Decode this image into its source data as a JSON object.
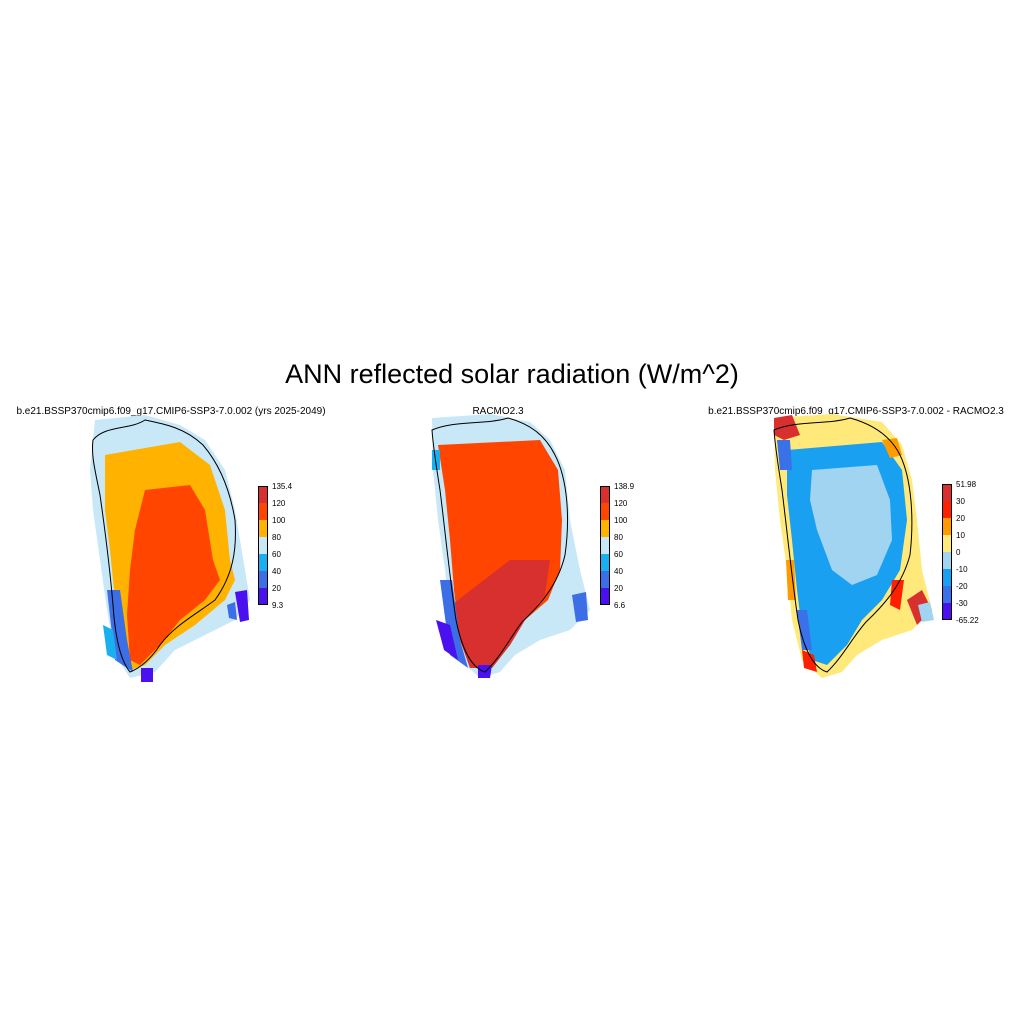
{
  "title": "ANN reflected solar radiation (W/m^2)",
  "panels": [
    {
      "title": "b.e21.BSSP370cmip6.f09_g17.CMIP6-SSP3-7.0.002 (yrs 2025-2049)",
      "colorbar": {
        "labels": [
          "135.4",
          "120",
          "100",
          "80",
          "60",
          "40",
          "20",
          "9.3"
        ],
        "colors": [
          "#d7302f",
          "#ff4500",
          "#ffb300",
          "#c8e8f8",
          "#1ab0f0",
          "#3c6ee6",
          "#4a10f0"
        ]
      }
    },
    {
      "title": "RACMO2.3",
      "colorbar": {
        "labels": [
          "138.9",
          "120",
          "100",
          "80",
          "60",
          "40",
          "20",
          "6.6"
        ],
        "colors": [
          "#d7302f",
          "#ff4500",
          "#ffb300",
          "#c8e8f8",
          "#1ab0f0",
          "#3c6ee6",
          "#4a10f0"
        ]
      }
    },
    {
      "title": "b.e21.BSSP370cmip6.f09_g17.CMIP6-SSP3-7.0.002 - RACMO2.3",
      "colorbar": {
        "labels": [
          "51.98",
          "30",
          "20",
          "10",
          "0",
          "-10",
          "-20",
          "-30",
          "-65.22"
        ],
        "colors": [
          "#d7302f",
          "#ff2000",
          "#ff9a00",
          "#ffe97a",
          "#a0d4f0",
          "#1aa0f0",
          "#3a70e8",
          "#4a10f0"
        ]
      }
    }
  ]
}
